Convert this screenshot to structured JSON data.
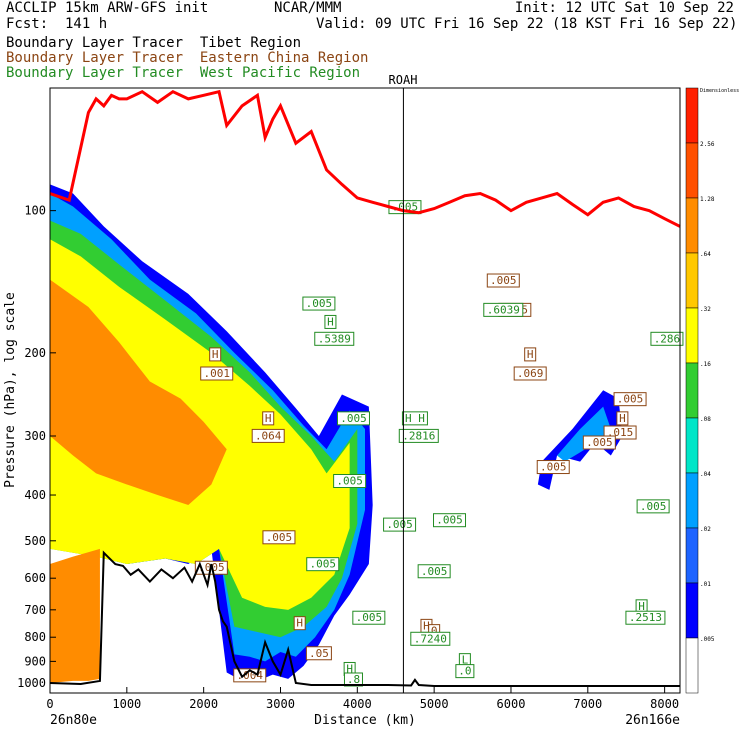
{
  "header": {
    "model": "ACCLIP 15km ARW-GFS init",
    "forecast": "Fcst:  141 h",
    "center": "NCAR/MMM",
    "init": "Init: 12 UTC Sat 10 Sep 22",
    "valid": "Valid: 09 UTC Fri 16 Sep 22 (18 KST Fri 16 Sep 22)"
  },
  "legend": [
    {
      "name": "Boundary Layer Tracer  Tibet Region",
      "color": "#000000"
    },
    {
      "name": "Boundary Layer Tracer  Eastern China Region",
      "color": "#8b4513"
    },
    {
      "name": "Boundary Layer Tracer  West Pacific Region",
      "color": "#228b22"
    }
  ],
  "chart_data": {
    "type": "area",
    "xlabel": "Distance (km)",
    "ylabel": "Pressure (hPa), log scale",
    "xlim": [
      0,
      8200
    ],
    "ylim": [
      1050,
      55
    ],
    "log_y": true,
    "x_ticks": [
      0,
      1000,
      2000,
      3000,
      4000,
      5000,
      6000,
      7000,
      8000
    ],
    "y_ticks": [
      100,
      200,
      300,
      400,
      500,
      600,
      700,
      800,
      900,
      1000
    ],
    "x_start_label": "26n80e",
    "x_end_label": "26n166e",
    "marker": {
      "label": "ROAH",
      "x": 4600
    },
    "colorbar": {
      "title": "Dimensionless",
      "levels": [
        ".005",
        ".01",
        ".02",
        ".04",
        ".08",
        ".16",
        ".32",
        ".64",
        "1.28",
        "2.56"
      ],
      "colors": [
        "#ffffff",
        "#0000ff",
        "#1e64ff",
        "#00a0ff",
        "#00e6c8",
        "#32cd32",
        "#ffff00",
        "#ffc800",
        "#ff8c00",
        "#ff5000",
        "#ff2000"
      ]
    },
    "tropopause": {
      "color": "#ff0000",
      "x": [
        0,
        250,
        500,
        600,
        700,
        800,
        900,
        1000,
        1200,
        1400,
        1600,
        1800,
        2000,
        2200,
        2300,
        2500,
        2700,
        2800,
        2900,
        3000,
        3200,
        3400,
        3600,
        3800,
        4000,
        4200,
        4400,
        4600,
        4800,
        5000,
        5200,
        5400,
        5600,
        5800,
        6000,
        6200,
        6400,
        6600,
        6800,
        7000,
        7200,
        7400,
        7600,
        7800,
        8000,
        8200
      ],
      "y": [
        92,
        95,
        62,
        58,
        60,
        57,
        58,
        58,
        56,
        59,
        56,
        58,
        57,
        56,
        66,
        60,
        57,
        70,
        64,
        60,
        72,
        68,
        82,
        88,
        94,
        96,
        98,
        100,
        101,
        99,
        96,
        93,
        92,
        95,
        100,
        96,
        94,
        92,
        97,
        102,
        96,
        94,
        98,
        100,
        104,
        108
      ]
    },
    "terrain": {
      "color": "#000000",
      "x": [
        0,
        400,
        650,
        700,
        750,
        850,
        950,
        1050,
        1150,
        1300,
        1450,
        1600,
        1750,
        1850,
        1950,
        2050,
        2100,
        2150,
        2200,
        2250,
        2300,
        2400,
        2500,
        2600,
        2700,
        2800,
        2900,
        3000,
        3100,
        3200,
        3400,
        3600,
        4000,
        4400,
        4700,
        4750,
        4800,
        5000,
        6000,
        7000,
        8000,
        8200
      ],
      "y": [
        1000,
        1005,
        990,
        530,
        540,
        560,
        565,
        590,
        575,
        610,
        575,
        600,
        570,
        610,
        560,
        620,
        560,
        610,
        700,
        740,
        760,
        900,
        970,
        940,
        960,
        820,
        900,
        960,
        850,
        1000,
        1010,
        1010,
        1010,
        1010,
        1012,
        985,
        1010,
        1015,
        1015,
        1015,
        1015,
        1015
      ]
    },
    "vertical_line_x": 4600,
    "shaded_regions": [
      {
        "level": ".01",
        "color": "#0000ff",
        "x": [
          0,
          300,
          700,
          1200,
          1800,
          2300,
          2800,
          3200,
          3500,
          3800,
          4150,
          4200,
          4150,
          3900,
          3700,
          3500,
          3300,
          3100,
          2900,
          2700,
          2500,
          2300,
          2100,
          1800,
          1500,
          1000,
          700,
          400,
          0
        ],
        "y": [
          88,
          92,
          108,
          128,
          150,
          180,
          220,
          262,
          300,
          245,
          260,
          420,
          560,
          650,
          720,
          830,
          920,
          980,
          960,
          990,
          990,
          950,
          520,
          560,
          545,
          560,
          540,
          520,
          500
        ]
      },
      {
        "level": ".04",
        "color": "#00a0ff",
        "x": [
          0,
          300,
          800,
          1300,
          1900,
          2400,
          2900,
          3300,
          3600,
          3900,
          4100,
          4100,
          3900,
          3700,
          3450,
          3200,
          3000,
          2800,
          2600,
          2400,
          2200,
          1900,
          1500,
          1000,
          600,
          0
        ],
        "y": [
          92,
          98,
          115,
          140,
          165,
          200,
          240,
          285,
          320,
          265,
          290,
          430,
          590,
          700,
          800,
          880,
          860,
          900,
          880,
          870,
          520,
          560,
          545,
          560,
          540,
          500
        ]
      },
      {
        "level": ".16",
        "color": "#32cd32",
        "x": [
          0,
          400,
          900,
          1500,
          2100,
          2600,
          3000,
          3400,
          3700,
          4000,
          4000,
          3800,
          3600,
          3300,
          3000,
          2700,
          2400,
          2200,
          1900,
          1500,
          1000,
          600,
          0
        ],
        "y": [
          105,
          112,
          130,
          155,
          185,
          220,
          260,
          300,
          340,
          290,
          460,
          600,
          690,
          760,
          800,
          780,
          760,
          520,
          560,
          545,
          560,
          540,
          520
        ]
      },
      {
        "level": ".32",
        "color": "#ffff00",
        "x": [
          0,
          400,
          900,
          1500,
          2100,
          2600,
          3000,
          3400,
          3600,
          3900,
          3900,
          3700,
          3400,
          3100,
          2800,
          2500,
          2200,
          1900,
          1500,
          1000,
          600,
          0
        ],
        "y": [
          115,
          125,
          145,
          170,
          200,
          235,
          270,
          320,
          360,
          310,
          470,
          590,
          660,
          700,
          690,
          660,
          520,
          560,
          545,
          560,
          540,
          520
        ]
      },
      {
        "level": ".64",
        "color": "#ff8c00",
        "x": [
          0,
          500,
          900,
          1300,
          1700,
          2000,
          2300,
          2100,
          1800,
          1400,
          1000,
          600,
          300,
          0
        ],
        "y": [
          140,
          160,
          190,
          230,
          250,
          280,
          320,
          380,
          420,
          400,
          380,
          360,
          330,
          300
        ]
      },
      {
        "level": ".64",
        "color": "#ff8c00",
        "x": [
          0,
          300,
          650,
          650,
          500,
          300,
          0
        ],
        "y": [
          560,
          540,
          520,
          980,
          990,
          990,
          1000
        ]
      },
      {
        "level": ".01",
        "color": "#0000ff",
        "x": [
          6400,
          6800,
          7200,
          7400,
          7450,
          7300,
          7100,
          6900,
          6600,
          6500,
          6350
        ],
        "y": [
          340,
          290,
          240,
          250,
          300,
          330,
          310,
          340,
          330,
          390,
          380
        ]
      },
      {
        "level": ".04",
        "color": "#00a0ff",
        "x": [
          6600,
          6900,
          7200,
          7300,
          7100,
          6900,
          6700
        ],
        "y": [
          330,
          290,
          260,
          290,
          310,
          325,
          340
        ]
      }
    ],
    "contour_labels": [
      {
        "text": ".005",
        "x": 4620,
        "y": 100,
        "color": "#228b22"
      },
      {
        "text": ".005",
        "x": 3500,
        "y": 160,
        "color": "#228b22"
      },
      {
        "text": "H",
        "x": 3650,
        "y": 175,
        "color": "#228b22"
      },
      {
        "text": ".5389",
        "x": 3700,
        "y": 190,
        "color": "#228b22"
      },
      {
        "text": ".005",
        "x": 5900,
        "y": 143,
        "color": "#8b4513"
      },
      {
        "text": ".005",
        "x": 6050,
        "y": 165,
        "color": "#8b4513"
      },
      {
        "text": ".6039",
        "x": 5900,
        "y": 165,
        "color": "#228b22"
      },
      {
        "text": "H",
        "x": 6250,
        "y": 205,
        "color": "#8b4513"
      },
      {
        "text": ".069",
        "x": 6250,
        "y": 225,
        "color": "#8b4513"
      },
      {
        "text": ".286",
        "x": 8030,
        "y": 190,
        "color": "#228b22"
      },
      {
        "text": "H",
        "x": 2150,
        "y": 205,
        "color": "#8b4513"
      },
      {
        "text": ".001",
        "x": 2170,
        "y": 225,
        "color": "#8b4513"
      },
      {
        "text": "H",
        "x": 2840,
        "y": 280,
        "color": "#8b4513"
      },
      {
        "text": ".064",
        "x": 2840,
        "y": 305,
        "color": "#8b4513"
      },
      {
        "text": ".005",
        "x": 3950,
        "y": 280,
        "color": "#228b22"
      },
      {
        "text": "H H",
        "x": 4750,
        "y": 280,
        "color": "#228b22"
      },
      {
        "text": ".2816",
        "x": 4800,
        "y": 305,
        "color": "#228b22"
      },
      {
        "text": ".005",
        "x": 7550,
        "y": 255,
        "color": "#8b4513"
      },
      {
        "text": "H",
        "x": 7450,
        "y": 280,
        "color": "#8b4513"
      },
      {
        "text": ".015",
        "x": 7420,
        "y": 300,
        "color": "#8b4513"
      },
      {
        "text": ".005",
        "x": 7150,
        "y": 315,
        "color": "#8b4513"
      },
      {
        "text": ".005",
        "x": 6550,
        "y": 355,
        "color": "#8b4513"
      },
      {
        "text": ".005",
        "x": 3900,
        "y": 380,
        "color": "#228b22"
      },
      {
        "text": ".005",
        "x": 4550,
        "y": 470,
        "color": "#228b22"
      },
      {
        "text": ".005",
        "x": 5200,
        "y": 460,
        "color": "#228b22"
      },
      {
        "text": ".005",
        "x": 7850,
        "y": 430,
        "color": "#228b22"
      },
      {
        "text": ".005",
        "x": 2980,
        "y": 500,
        "color": "#8b4513"
      },
      {
        "text": ".005",
        "x": 2100,
        "y": 580,
        "color": "#8b4513"
      },
      {
        "text": ".005",
        "x": 3550,
        "y": 570,
        "color": "#228b22"
      },
      {
        "text": ".005",
        "x": 5000,
        "y": 590,
        "color": "#228b22"
      },
      {
        "text": ".005",
        "x": 4150,
        "y": 740,
        "color": "#228b22"
      },
      {
        "text": "H",
        "x": 3250,
        "y": 760,
        "color": "#8b4513"
      },
      {
        "text": ".05",
        "x": 3500,
        "y": 880,
        "color": "#8b4513"
      },
      {
        "text": "H",
        "x": 4900,
        "y": 770,
        "color": "#8b4513"
      },
      {
        "text": "0",
        "x": 5000,
        "y": 790,
        "color": "#8b4513"
      },
      {
        "text": ".7240",
        "x": 4950,
        "y": 820,
        "color": "#228b22"
      },
      {
        "text": "H",
        "x": 7700,
        "y": 700,
        "color": "#228b22"
      },
      {
        "text": ".2513",
        "x": 7750,
        "y": 740,
        "color": "#228b22"
      },
      {
        "text": "L",
        "x": 5400,
        "y": 910,
        "color": "#228b22"
      },
      {
        "text": ".0",
        "x": 5400,
        "y": 960,
        "color": "#228b22"
      },
      {
        "text": "H",
        "x": 3900,
        "y": 950,
        "color": "#228b22"
      },
      {
        "text": ".8",
        "x": 3950,
        "y": 1000,
        "color": "#228b22"
      },
      {
        "text": ".004",
        "x": 2600,
        "y": 980,
        "color": "#8b4513"
      }
    ]
  }
}
